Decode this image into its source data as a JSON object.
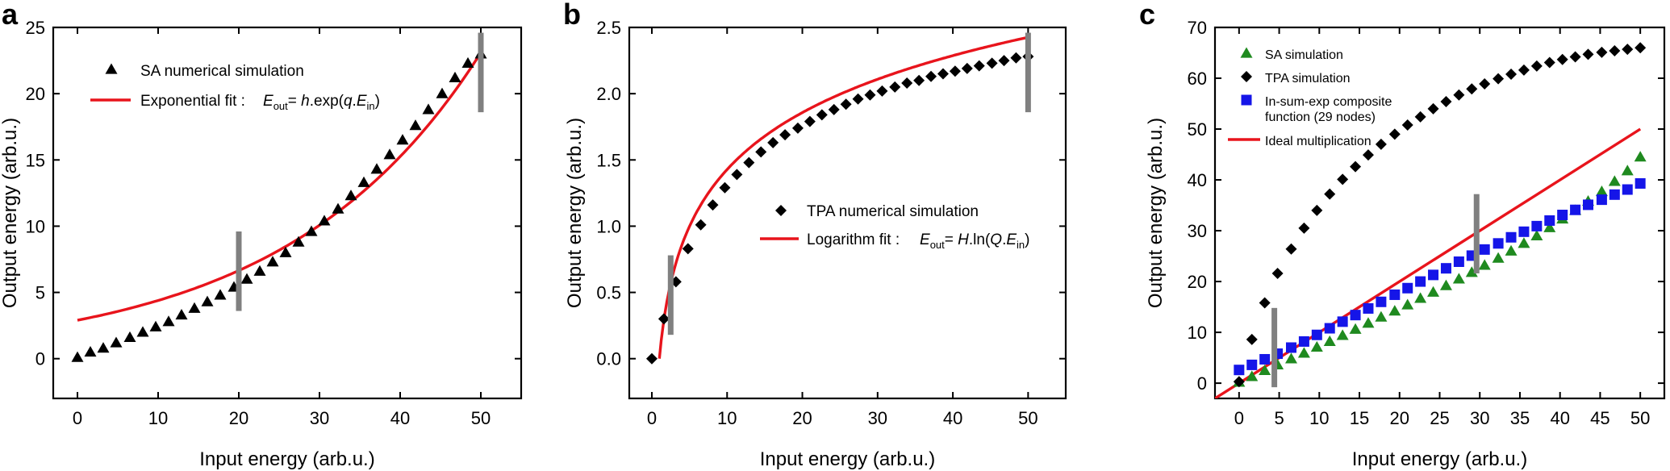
{
  "figure": {
    "panel_labels": [
      "a",
      "b",
      "c"
    ]
  },
  "chart_data": [
    {
      "panel": "a",
      "type": "scatter",
      "xlabel": "Input energy (arb.u.)",
      "ylabel": "Output energy (arb.u.)",
      "xlim": [
        -3,
        55
      ],
      "ylim": [
        -3,
        25
      ],
      "xticks": [
        0,
        10,
        20,
        30,
        40,
        50
      ],
      "yticks": [
        0,
        5,
        10,
        15,
        20,
        25
      ],
      "legend_position": "top-left",
      "series": [
        {
          "name": "SA numerical simulation",
          "kind": "scatter",
          "marker": "triangle",
          "color": "#000000",
          "x": [
            0,
            1.6,
            3.2,
            4.8,
            6.5,
            8.1,
            9.7,
            11.3,
            12.9,
            14.5,
            16.1,
            17.7,
            19.4,
            21.0,
            22.6,
            24.2,
            25.8,
            27.4,
            29.0,
            30.6,
            32.3,
            33.9,
            35.5,
            37.1,
            38.7,
            40.3,
            41.9,
            43.5,
            45.2,
            46.8,
            48.4,
            50.0
          ],
          "y": [
            0.1,
            0.5,
            0.8,
            1.2,
            1.6,
            2.0,
            2.4,
            2.8,
            3.3,
            3.8,
            4.3,
            4.8,
            5.4,
            6.0,
            6.6,
            7.3,
            8.0,
            8.8,
            9.6,
            10.4,
            11.3,
            12.3,
            13.3,
            14.3,
            15.4,
            16.5,
            17.6,
            18.8,
            20.0,
            21.2,
            22.3,
            23.0
          ]
        },
        {
          "name": "Exponential fit : E_out = h.exp(q.E_in)",
          "kind": "line",
          "color": "#e8141c",
          "h": 2.9,
          "q": 0.0415,
          "x_range": [
            0,
            50
          ]
        }
      ],
      "markers": [
        {
          "x": 20,
          "y_range": [
            3.6,
            9.6
          ],
          "color": "#808080"
        },
        {
          "x": 50,
          "y_range": [
            18.6,
            24.6
          ],
          "color": "#808080"
        }
      ],
      "legend": {
        "entries": [
          "SA numerical simulation",
          "Exponential fit : "
        ],
        "formula_a": {
          "pre": "E",
          "sub1": "out",
          "mid": "= ",
          "italic": "h",
          "post": ".exp(",
          "italic2": "q",
          "post2": ".",
          "italic3": "E",
          "sub2": "in",
          "end": ")"
        }
      }
    },
    {
      "panel": "b",
      "type": "scatter",
      "xlabel": "Input energy (arb.u.)",
      "ylabel": "Output energy (arb.u.)",
      "xlim": [
        -3,
        55
      ],
      "ylim": [
        -0.3,
        2.5
      ],
      "xticks": [
        0,
        10,
        20,
        30,
        40,
        50
      ],
      "yticks": [
        0.0,
        0.5,
        1.0,
        1.5,
        2.0,
        2.5
      ],
      "ytick_labels": [
        "0.0",
        "0.5",
        "1.0",
        "1.5",
        "2.0",
        "2.5"
      ],
      "legend_position": "center-right",
      "series": [
        {
          "name": "TPA numerical simulation",
          "kind": "scatter",
          "marker": "diamond",
          "color": "#000000",
          "x": [
            0,
            1.6,
            3.2,
            4.8,
            6.5,
            8.1,
            9.7,
            11.3,
            12.9,
            14.5,
            16.1,
            17.7,
            19.4,
            21.0,
            22.6,
            24.2,
            25.8,
            27.4,
            29.0,
            30.6,
            32.3,
            33.9,
            35.5,
            37.1,
            38.7,
            40.3,
            41.9,
            43.5,
            45.2,
            46.8,
            48.4,
            50.0
          ],
          "y": [
            0.0,
            0.3,
            0.58,
            0.83,
            1.01,
            1.16,
            1.29,
            1.39,
            1.48,
            1.56,
            1.63,
            1.69,
            1.74,
            1.79,
            1.84,
            1.88,
            1.92,
            1.96,
            1.99,
            2.02,
            2.05,
            2.08,
            2.1,
            2.13,
            2.15,
            2.17,
            2.19,
            2.21,
            2.23,
            2.25,
            2.27,
            2.28
          ]
        },
        {
          "name": "Logarithm fit : E_out = H.ln(Q.E_in)",
          "kind": "line",
          "color": "#e8141c",
          "H": 0.62,
          "Q": 1.0,
          "x_range": [
            1.0,
            50
          ]
        }
      ],
      "markers": [
        {
          "x": 2.5,
          "y_range": [
            0.18,
            0.78
          ],
          "color": "#808080"
        },
        {
          "x": 50,
          "y_range": [
            1.86,
            2.46
          ],
          "color": "#808080"
        }
      ],
      "legend": {
        "entries": [
          "TPA numerical simulation",
          "Logarithm fit : "
        ],
        "formula_b": {
          "pre": "E",
          "sub1": "out",
          "mid": "= ",
          "italic": "H",
          "post": ".ln(",
          "italic2": "Q",
          "post2": ".",
          "italic3": "E",
          "sub2": "in",
          "end": ")"
        }
      }
    },
    {
      "panel": "c",
      "type": "scatter",
      "xlabel": "Input energy (arb.u.)",
      "ylabel": "Output energy (arb.u.)",
      "xlim": [
        -3,
        53
      ],
      "ylim": [
        -3,
        70
      ],
      "xticks": [
        0,
        5,
        10,
        15,
        20,
        25,
        30,
        35,
        40,
        45,
        50
      ],
      "yticks": [
        0,
        10,
        20,
        30,
        40,
        50,
        60,
        70
      ],
      "legend_position": "top-left",
      "series": [
        {
          "name": "SA simulation",
          "kind": "scatter",
          "marker": "triangle",
          "color": "#1f8a1f",
          "x": [
            0,
            1.6,
            3.2,
            4.8,
            6.5,
            8.1,
            9.7,
            11.3,
            12.9,
            14.5,
            16.1,
            17.7,
            19.4,
            21.0,
            22.6,
            24.2,
            25.8,
            27.4,
            29.0,
            30.6,
            32.3,
            33.9,
            35.5,
            37.1,
            38.7,
            40.3,
            41.9,
            43.5,
            45.2,
            46.8,
            48.4,
            50.0
          ],
          "y": [
            0.2,
            1.3,
            2.5,
            3.6,
            4.8,
            5.9,
            7.1,
            8.2,
            9.4,
            10.6,
            11.8,
            13.0,
            14.2,
            15.4,
            16.7,
            17.9,
            19.2,
            20.5,
            21.8,
            23.2,
            24.6,
            26.0,
            27.5,
            29.0,
            30.6,
            32.3,
            34.0,
            35.8,
            37.7,
            39.7,
            41.8,
            44.5
          ]
        },
        {
          "name": "TPA simulation",
          "kind": "scatter",
          "marker": "diamond",
          "color": "#000000",
          "x": [
            0,
            1.6,
            3.2,
            4.8,
            6.5,
            8.1,
            9.7,
            11.3,
            12.9,
            14.5,
            16.1,
            17.7,
            19.4,
            21.0,
            22.6,
            24.2,
            25.8,
            27.4,
            29.0,
            30.6,
            32.3,
            33.9,
            35.5,
            37.1,
            38.7,
            40.3,
            41.9,
            43.5,
            45.2,
            46.8,
            48.4,
            50.0
          ],
          "y": [
            0.3,
            8.6,
            15.8,
            21.6,
            26.4,
            30.5,
            34.0,
            37.2,
            40.1,
            42.6,
            44.9,
            47.0,
            49.0,
            50.8,
            52.4,
            54.0,
            55.4,
            56.7,
            57.9,
            58.9,
            59.9,
            60.8,
            61.6,
            62.4,
            63.1,
            63.7,
            64.2,
            64.7,
            65.1,
            65.4,
            65.7,
            66.0
          ]
        },
        {
          "name": "ln-sum-exp composite function (29 nodes)",
          "kind": "scatter",
          "marker": "square",
          "color": "#1515e8",
          "x": [
            0,
            1.6,
            3.2,
            4.8,
            6.5,
            8.1,
            9.7,
            11.3,
            12.9,
            14.5,
            16.1,
            17.7,
            19.4,
            21.0,
            22.6,
            24.2,
            25.8,
            27.4,
            29.0,
            30.6,
            32.3,
            33.9,
            35.5,
            37.1,
            38.7,
            40.3,
            41.9,
            43.5,
            45.2,
            46.8,
            48.4,
            50.0
          ],
          "y": [
            2.6,
            3.6,
            4.7,
            5.8,
            7.0,
            8.2,
            9.5,
            10.8,
            12.1,
            13.4,
            14.7,
            16.0,
            17.4,
            18.7,
            20.0,
            21.3,
            22.6,
            23.9,
            25.1,
            26.3,
            27.5,
            28.7,
            29.8,
            30.9,
            32.0,
            33.1,
            34.1,
            35.1,
            36.1,
            37.1,
            38.1,
            39.3
          ]
        },
        {
          "name": "Ideal multiplication",
          "kind": "line",
          "color": "#e8141c",
          "x": [
            -3,
            50
          ],
          "y": [
            -3,
            50
          ]
        }
      ],
      "markers": [
        {
          "x": 4.4,
          "y_range": [
            -0.8,
            14.8
          ],
          "color": "#808080"
        },
        {
          "x": 29.6,
          "y_range": [
            21.6,
            37.2
          ],
          "color": "#808080"
        }
      ],
      "legend": {
        "entries": [
          "SA simulation",
          "TPA simulation",
          "In-sum-exp composite",
          "function (29 nodes)",
          "Ideal multiplication"
        ]
      }
    }
  ]
}
